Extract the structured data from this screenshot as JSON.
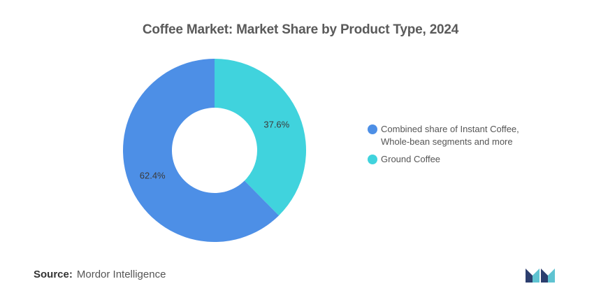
{
  "chart_data": {
    "type": "pie",
    "title": "Coffee Market: Market Share by Product Type, 2024",
    "categories": [
      "Combined share of Instant Coffee, Whole-bean segments and more",
      "Ground Coffee"
    ],
    "values": [
      62.4,
      37.6
    ],
    "value_labels": [
      "62.4%",
      "37.6%"
    ],
    "donut": true,
    "colors": [
      "#4d8fe6",
      "#40d3dd"
    ],
    "legend_position": "right"
  },
  "legend": {
    "items": [
      {
        "label_line1": "Combined share of Instant Coffee,",
        "label_line2": "Whole-bean segments and more",
        "color": "#4d8fe6"
      },
      {
        "label_line1": "Ground Coffee",
        "label_line2": "",
        "color": "#40d3dd"
      }
    ]
  },
  "source": {
    "label": "Source:",
    "value": "Mordor Intelligence"
  },
  "logo": {
    "icon": "mordor-intelligence-logo-icon",
    "color_dark": "#2c3e6e",
    "color_light": "#5fc3d1"
  }
}
